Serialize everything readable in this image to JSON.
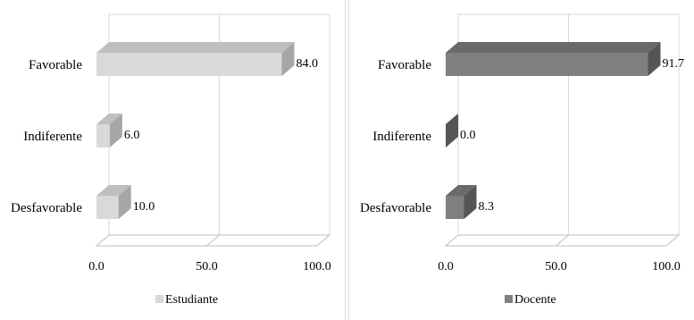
{
  "chart_data": [
    {
      "type": "bar",
      "orientation": "horizontal",
      "categories": [
        "Favorable",
        "Indiferente",
        "Desfavorable"
      ],
      "series": [
        {
          "name": "Estudiante",
          "values": [
            84.0,
            6.0,
            10.0
          ]
        }
      ],
      "data_labels": [
        "84.0",
        "6.0",
        "10.0"
      ],
      "xlim": [
        0,
        100
      ],
      "x_ticks": [
        "0.0",
        "50.0",
        "100.0"
      ],
      "grid": true,
      "legend_position": "bottom",
      "colors": {
        "front": "#d9d9d9",
        "top": "#bfbfbf",
        "side": "#a6a6a6"
      }
    },
    {
      "type": "bar",
      "orientation": "horizontal",
      "categories": [
        "Favorable",
        "Indiferente",
        "Desfavorable"
      ],
      "series": [
        {
          "name": "Docente",
          "values": [
            91.7,
            0.0,
            8.3
          ]
        }
      ],
      "data_labels": [
        "91.7",
        "0.0",
        "8.3"
      ],
      "xlim": [
        0,
        100
      ],
      "x_ticks": [
        "0.0",
        "50.0",
        "100.0"
      ],
      "grid": true,
      "legend_position": "bottom",
      "colors": {
        "front": "#7f7f7f",
        "top": "#6a6a6a",
        "side": "#555555"
      }
    }
  ]
}
